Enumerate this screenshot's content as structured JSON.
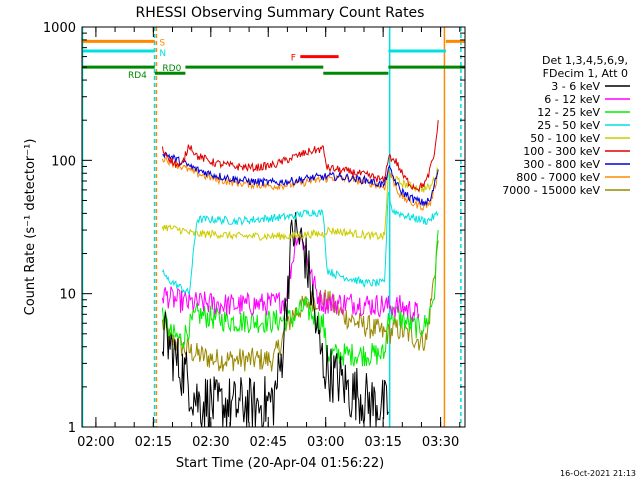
{
  "chart_data": {
    "type": "line",
    "title": "RHESSI Observing Summary Count Rates",
    "xlabel": "Start Time (20-Apr-04 01:56:22)",
    "ylabel": "Count Rate (s⁻¹ detector⁻¹)",
    "yscale": "log",
    "ylim": [
      1,
      1000
    ],
    "xlim_minutes_after_start": [
      0,
      100
    ],
    "x_tick_labels": [
      "02:00",
      "02:15",
      "02:30",
      "02:45",
      "03:00",
      "03:15",
      "03:30"
    ],
    "x_tick_minutes": [
      3.63,
      18.63,
      33.63,
      48.63,
      63.63,
      78.63,
      93.63
    ],
    "y_tick_labels": [
      "1",
      "10",
      "100",
      "1000"
    ],
    "y_tick_values": [
      1,
      10,
      100,
      1000
    ],
    "legend": {
      "position": "right",
      "header": [
        "Det 1,3,4,5,6,9,",
        "FDecim 1, Att 0"
      ],
      "entries": [
        {
          "label": "3 - 6 keV",
          "color": "#000000"
        },
        {
          "label": "6 - 12 keV",
          "color": "#ff00ff"
        },
        {
          "label": "12 - 25 keV",
          "color": "#00ee00"
        },
        {
          "label": "25 - 50 keV",
          "color": "#00e0e0"
        },
        {
          "label": "50 - 100 keV",
          "color": "#cccc00"
        },
        {
          "label": "100 - 300 keV",
          "color": "#dd0000"
        },
        {
          "label": "300 - 800 keV",
          "color": "#0000dd"
        },
        {
          "label": "800 - 7000 keV",
          "color": "#ff8800"
        },
        {
          "label": "7000 - 15000 keV",
          "color": "#998800"
        }
      ]
    },
    "flag_labels": {
      "s": "S",
      "n": "N",
      "f": "F",
      "rd0": "RD0",
      "rd4": "RD4"
    },
    "flags": {
      "S": {
        "color": "#ff8800",
        "y": 780,
        "segments": [
          [
            0,
            19
          ],
          [
            95,
            100
          ]
        ]
      },
      "N": {
        "color": "#00e0e0",
        "y": 660,
        "segments": [
          [
            0,
            19
          ],
          [
            80,
            95
          ]
        ]
      },
      "F": {
        "color": "#ff0000",
        "y": 600,
        "segments": [
          [
            57,
            67
          ]
        ]
      },
      "RD0": {
        "color": "#008800",
        "y": 500,
        "segments": [
          [
            0,
            19
          ],
          [
            27,
            63
          ],
          [
            80,
            100
          ]
        ]
      },
      "RD4": {
        "color": "#008800",
        "y": 450,
        "segments": [
          [
            19,
            27
          ],
          [
            63,
            80
          ]
        ]
      }
    },
    "series": [
      {
        "name": "7000 - 15000 keV",
        "color": "#998800",
        "x": [
          21,
          23,
          26,
          30,
          35,
          40,
          45,
          50,
          55,
          60,
          63,
          64,
          68,
          72,
          76,
          79,
          80,
          82,
          85,
          88,
          90,
          91,
          93
        ],
        "y": [
          6,
          4.5,
          4,
          3.5,
          3.2,
          3.2,
          3.2,
          3.2,
          7,
          9,
          9,
          9,
          7,
          6,
          5.5,
          5,
          5,
          5.5,
          5,
          4.5,
          4.5,
          8,
          25
        ]
      },
      {
        "name": "12 - 25 keV",
        "color": "#00ee00",
        "x": [
          21,
          23,
          26,
          30,
          35,
          40,
          45,
          50,
          55,
          58,
          60,
          63,
          64,
          68,
          72,
          76,
          79,
          80,
          82,
          85,
          88,
          90,
          92,
          93
        ],
        "y": [
          7,
          5,
          4.5,
          7,
          6.5,
          6.2,
          6.2,
          6.2,
          6.5,
          8,
          7,
          6,
          3.5,
          3.5,
          3.5,
          3.5,
          3.5,
          7,
          7,
          6,
          5.5,
          6,
          10,
          30
        ]
      },
      {
        "name": "6 - 12 keV",
        "color": "#ff00ff",
        "x": [
          21,
          24,
          28,
          32,
          36,
          40,
          45,
          50,
          53,
          55,
          56,
          57,
          58,
          60,
          62,
          64,
          68,
          72,
          76,
          79,
          80,
          83,
          86,
          88
        ],
        "y": [
          10,
          9,
          8.5,
          8.5,
          8.3,
          8.2,
          8.3,
          8.4,
          9,
          18,
          28,
          26,
          24,
          13,
          9,
          8.5,
          8.5,
          8.5,
          8.2,
          8.2,
          8,
          8,
          7.5,
          7
        ]
      },
      {
        "name": "3 - 6 keV",
        "color": "#000000",
        "x": [
          21,
          23,
          25,
          27,
          29,
          31,
          33,
          35,
          38,
          40,
          42,
          45,
          48,
          50,
          52,
          54,
          55,
          56,
          57,
          58,
          60,
          61,
          62,
          63,
          65,
          68,
          70,
          72,
          74,
          76,
          78,
          80
        ],
        "y": [
          5,
          4,
          3,
          2.5,
          1.8,
          1.5,
          1.6,
          1.4,
          1.5,
          1.4,
          1.5,
          1.4,
          1.5,
          1.6,
          3,
          15,
          30,
          28,
          25,
          22,
          10,
          6,
          4,
          3,
          2.5,
          2.2,
          1.8,
          1.8,
          1.6,
          1.5,
          1.5,
          1.3
        ]
      },
      {
        "name": "25 - 50 keV",
        "color": "#00e0e0",
        "x": [
          21,
          22,
          24,
          26,
          28,
          30,
          35,
          40,
          45,
          50,
          55,
          58,
          60,
          63,
          64,
          66,
          70,
          74,
          78,
          79,
          80,
          81,
          85,
          90,
          92,
          93
        ],
        "y": [
          15,
          13,
          12,
          11,
          10,
          36,
          36,
          35,
          36,
          37,
          38,
          40,
          41,
          40,
          15,
          14,
          13,
          12,
          12,
          12,
          60,
          42,
          38,
          35,
          38,
          40
        ]
      },
      {
        "name": "50 - 100 keV",
        "color": "#cccc00",
        "x": [
          21,
          23,
          26,
          29,
          30,
          35,
          40,
          45,
          50,
          55,
          60,
          63,
          64,
          68,
          72,
          76,
          79,
          80,
          83,
          86,
          89,
          91,
          93
        ],
        "y": [
          32,
          31,
          30,
          28,
          28,
          28,
          27,
          27,
          27,
          27,
          28,
          28,
          30,
          29,
          28,
          27,
          27,
          80,
          68,
          64,
          61,
          63,
          85
        ]
      },
      {
        "name": "800 - 7000 keV",
        "color": "#ff8800",
        "x": [
          21,
          25,
          30,
          35,
          40,
          45,
          50,
          55,
          60,
          65,
          70,
          75,
          79,
          80,
          83,
          86,
          89,
          91,
          93
        ],
        "y": [
          105,
          92,
          80,
          72,
          68,
          66,
          64,
          66,
          70,
          74,
          72,
          68,
          63,
          85,
          55,
          48,
          45,
          48,
          80
        ]
      },
      {
        "name": "300 - 800 keV",
        "color": "#0000dd",
        "x": [
          21,
          25,
          30,
          35,
          40,
          45,
          50,
          55,
          60,
          65,
          70,
          75,
          79,
          80,
          83,
          86,
          89,
          91,
          93
        ],
        "y": [
          115,
          100,
          85,
          77,
          72,
          69,
          68,
          70,
          74,
          76,
          74,
          70,
          65,
          88,
          60,
          52,
          48,
          50,
          85
        ]
      },
      {
        "name": "100 - 300 keV",
        "color": "#dd0000",
        "x": [
          21,
          24,
          26,
          28,
          30,
          35,
          40,
          45,
          50,
          55,
          60,
          63,
          64,
          68,
          72,
          76,
          79,
          80,
          82,
          84,
          86,
          88,
          90,
          92,
          93
        ],
        "y": [
          120,
          95,
          90,
          132,
          108,
          95,
          90,
          88,
          92,
          105,
          118,
          122,
          88,
          84,
          80,
          75,
          70,
          108,
          98,
          75,
          65,
          62,
          70,
          110,
          200
        ]
      }
    ]
  },
  "footer": {
    "date_stamp": "16-Oct-2021 21:13"
  }
}
